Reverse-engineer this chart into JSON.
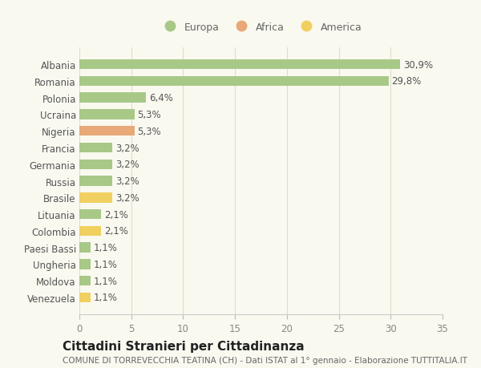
{
  "categories": [
    "Albania",
    "Romania",
    "Polonia",
    "Ucraina",
    "Nigeria",
    "Francia",
    "Germania",
    "Russia",
    "Brasile",
    "Lituania",
    "Colombia",
    "Paesi Bassi",
    "Ungheria",
    "Moldova",
    "Venezuela"
  ],
  "values": [
    30.9,
    29.8,
    6.4,
    5.3,
    5.3,
    3.2,
    3.2,
    3.2,
    3.2,
    2.1,
    2.1,
    1.1,
    1.1,
    1.1,
    1.1
  ],
  "labels": [
    "30,9%",
    "29,8%",
    "6,4%",
    "5,3%",
    "5,3%",
    "3,2%",
    "3,2%",
    "3,2%",
    "3,2%",
    "2,1%",
    "2,1%",
    "1,1%",
    "1,1%",
    "1,1%",
    "1,1%"
  ],
  "colors": [
    "#a8c888",
    "#a8c888",
    "#a8c888",
    "#a8c888",
    "#e8a878",
    "#a8c888",
    "#a8c888",
    "#a8c888",
    "#f0d060",
    "#a8c888",
    "#f0d060",
    "#a8c888",
    "#a8c888",
    "#a8c888",
    "#f0d060"
  ],
  "legend_labels": [
    "Europa",
    "Africa",
    "America"
  ],
  "legend_colors": [
    "#a8c888",
    "#e8a878",
    "#f0d060"
  ],
  "xlim": [
    0,
    35
  ],
  "xticks": [
    0,
    5,
    10,
    15,
    20,
    25,
    30,
    35
  ],
  "title": "Cittadini Stranieri per Cittadinanza",
  "subtitle": "COMUNE DI TORREVECCHIA TEATINA (CH) - Dati ISTAT al 1° gennaio - Elaborazione TUTTITALIA.IT",
  "background_color": "#f9f9f0",
  "grid_color": "#ddddcc",
  "bar_height": 0.6,
  "label_fontsize": 8.5,
  "tick_fontsize": 8.5,
  "title_fontsize": 11,
  "subtitle_fontsize": 7.5,
  "legend_fontsize": 9
}
